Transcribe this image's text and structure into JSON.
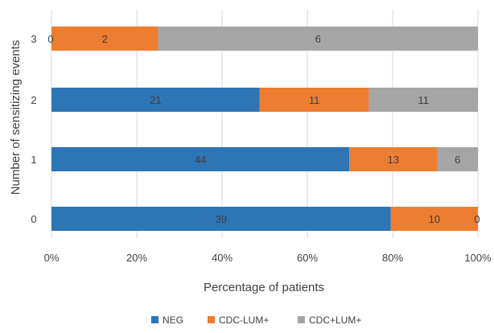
{
  "chart_data": {
    "type": "bar",
    "orientation": "horizontal",
    "stacked": "percent",
    "categories": [
      "0",
      "1",
      "2",
      "3"
    ],
    "series": [
      {
        "name": "NEG",
        "color": "#2e75b6",
        "values": [
          39,
          44,
          21,
          0
        ]
      },
      {
        "name": "CDC-LUM+",
        "color": "#ed7d31",
        "values": [
          10,
          13,
          11,
          2
        ]
      },
      {
        "name": "CDC+LUM+",
        "color": "#a5a5a5",
        "values": [
          0,
          6,
          11,
          6
        ]
      }
    ],
    "xlabel": "Percentage of patients",
    "ylabel": "Number of sensitizing events",
    "xlim": [
      0,
      100
    ],
    "xticks": [
      "0%",
      "20%",
      "40%",
      "60%",
      "80%",
      "100%"
    ],
    "grid": true,
    "legend": "bottom"
  }
}
